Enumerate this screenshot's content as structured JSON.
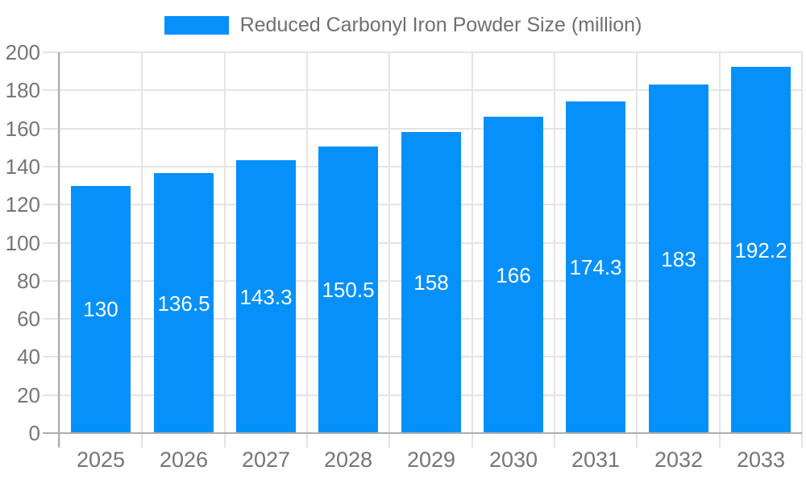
{
  "chart_data": {
    "type": "bar",
    "title": "Reduced Carbonyl Iron Powder Size (million)",
    "categories": [
      "2025",
      "2026",
      "2027",
      "2028",
      "2029",
      "2030",
      "2031",
      "2032",
      "2033"
    ],
    "values": [
      130,
      136.5,
      143.3,
      150.5,
      158,
      166,
      174.3,
      183,
      192.2
    ],
    "value_labels": [
      "130",
      "136.5",
      "143.3",
      "150.5",
      "158",
      "166",
      "174.3",
      "183",
      "192.2"
    ],
    "xlabel": "",
    "ylabel": "",
    "ylim": [
      0,
      200
    ],
    "ytick_step": 20,
    "ytick_labels": [
      "0",
      "20",
      "40",
      "60",
      "80",
      "100",
      "120",
      "140",
      "160",
      "180",
      "200"
    ],
    "grid": true,
    "legend_position": "top",
    "colors": {
      "bar": "#0690FA",
      "axis_label": "#757575",
      "legend_text": "#6F6F6F",
      "gridline": "#E4E4E4",
      "axis_line": "#ADADAD",
      "value_label": "#FFFFFF",
      "background": "#FFFFFF"
    }
  }
}
